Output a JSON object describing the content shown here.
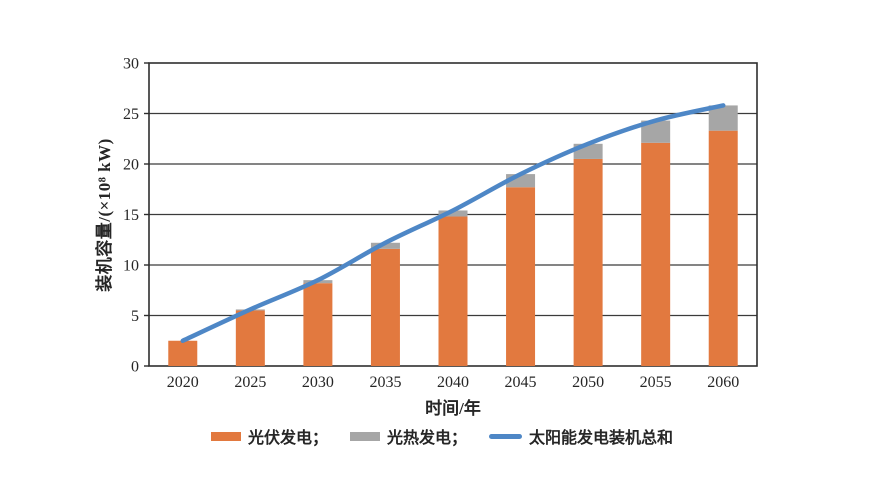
{
  "chart": {
    "ylabel": "装机容量/(×10⁸ kW)",
    "xlabel": "时间/年"
  },
  "legend": {
    "items": [
      {
        "label": "光伏发电；",
        "swatch": "bar",
        "color": "#E2793F"
      },
      {
        "label": "光热发电；",
        "swatch": "bar",
        "color": "#A6A6A6"
      },
      {
        "label": "太阳能发电装机总和",
        "swatch": "line",
        "color": "#4E87C6"
      }
    ]
  },
  "chart_data": {
    "type": "bar",
    "subtype": "stacked-bars-with-line-overlay",
    "title": "",
    "categories": [
      "2020",
      "2025",
      "2030",
      "2035",
      "2040",
      "2045",
      "2050",
      "2055",
      "2060"
    ],
    "series": [
      {
        "name": "光伏发电",
        "type": "bar",
        "color": "#E2793F",
        "values": [
          2.5,
          5.5,
          8.2,
          11.6,
          14.8,
          17.7,
          20.5,
          22.1,
          23.3
        ]
      },
      {
        "name": "光热发电",
        "type": "bar",
        "color": "#A6A6A6",
        "values": [
          0,
          0.1,
          0.3,
          0.6,
          0.6,
          1.3,
          1.5,
          2.2,
          2.5
        ]
      },
      {
        "name": "太阳能发电装机总和",
        "type": "line",
        "color": "#4E87C6",
        "values": [
          2.5,
          5.6,
          8.5,
          12.2,
          15.4,
          19.0,
          22.0,
          24.3,
          25.8
        ]
      }
    ],
    "xlabel": "时间/年",
    "ylabel": "装机容量/(×10⁸ kW)",
    "ylim": [
      0,
      30
    ],
    "ytick_step": 5,
    "yticks": [
      0,
      5,
      10,
      15,
      20,
      25,
      30
    ],
    "grid": true,
    "gridline_color": "#3b3b3b",
    "axis_color": "#2e2e2e",
    "text_color": "#262626",
    "legend_position": "bottom"
  }
}
